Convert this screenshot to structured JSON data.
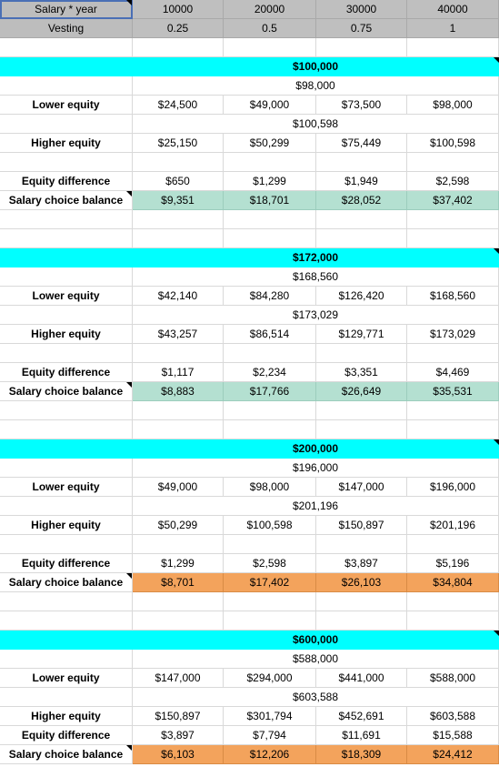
{
  "header": {
    "salary_label": "Salary * year",
    "vesting_label": "Vesting",
    "salary_years": [
      "10000",
      "20000",
      "30000",
      "40000"
    ],
    "vesting": [
      "0.25",
      "0.5",
      "0.75",
      "1"
    ]
  },
  "labels": {
    "lower": "Lower equity",
    "higher": "Higher equity",
    "diff": "Equity difference",
    "balance": "Salary choice balance"
  },
  "blocks": [
    {
      "title": "$100,000",
      "lower_total": "$98,000",
      "lower": [
        "$24,500",
        "$49,000",
        "$73,500",
        "$98,000"
      ],
      "higher_total": "$100,598",
      "higher": [
        "$25,150",
        "$50,299",
        "$75,449",
        "$100,598"
      ],
      "diff": [
        "$650",
        "$1,299",
        "$1,949",
        "$2,598"
      ],
      "balance": [
        "$9,351",
        "$18,701",
        "$28,052",
        "$37,402"
      ],
      "balance_color": "#b4e0d1"
    },
    {
      "title": "$172,000",
      "lower_total": "$168,560",
      "lower": [
        "$42,140",
        "$84,280",
        "$126,420",
        "$168,560"
      ],
      "higher_total": "$173,029",
      "higher": [
        "$43,257",
        "$86,514",
        "$129,771",
        "$173,029"
      ],
      "diff": [
        "$1,117",
        "$2,234",
        "$3,351",
        "$4,469"
      ],
      "balance": [
        "$8,883",
        "$17,766",
        "$26,649",
        "$35,531"
      ],
      "balance_color": "#b4e0d1"
    },
    {
      "title": "$200,000",
      "lower_total": "$196,000",
      "lower": [
        "$49,000",
        "$98,000",
        "$147,000",
        "$196,000"
      ],
      "higher_total": "$201,196",
      "higher": [
        "$50,299",
        "$100,598",
        "$150,897",
        "$201,196"
      ],
      "diff": [
        "$1,299",
        "$2,598",
        "$3,897",
        "$5,196"
      ],
      "balance": [
        "$8,701",
        "$17,402",
        "$26,103",
        "$34,804"
      ],
      "balance_color": "#f3a35c"
    },
    {
      "title": "$600,000",
      "lower_total": "$588,000",
      "lower": [
        "$147,000",
        "$294,000",
        "$441,000",
        "$588,000"
      ],
      "higher_total": "$603,588",
      "higher": [
        "$150,897",
        "$301,794",
        "$452,691",
        "$603,588"
      ],
      "diff": [
        "$3,897",
        "$7,794",
        "$11,691",
        "$15,588"
      ],
      "balance": [
        "$6,103",
        "$12,206",
        "$18,309",
        "$24,412"
      ],
      "balance_color": "#f3a35c"
    }
  ],
  "colors": {
    "header_gray": "#bfbfbf",
    "title_cyan": "#00ffff",
    "balance_teal": "#b4e0d1",
    "balance_orange": "#f3a35c"
  }
}
